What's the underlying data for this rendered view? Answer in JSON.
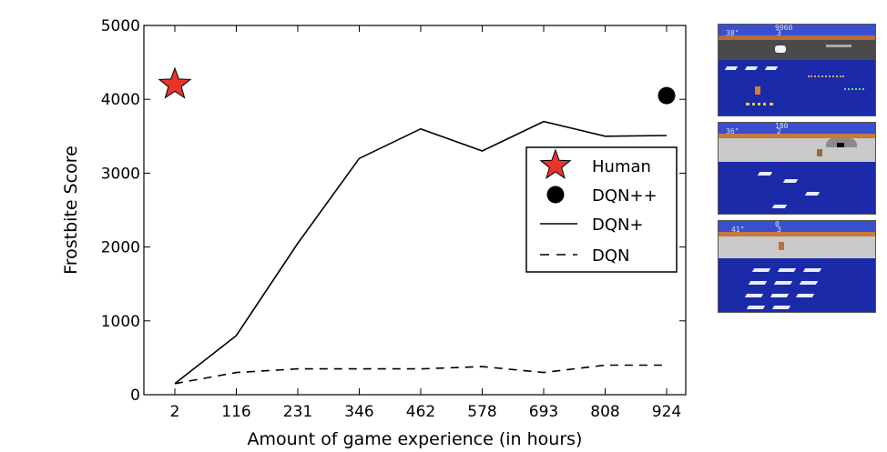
{
  "chart_data": {
    "type": "line",
    "xlabel": "Amount of game experience (in hours)",
    "ylabel": "Frostbite Score",
    "x": [
      2,
      116,
      231,
      346,
      462,
      578,
      693,
      808,
      924
    ],
    "x_tick_labels": [
      "2",
      "116",
      "231",
      "346",
      "462",
      "578",
      "693",
      "808",
      "924"
    ],
    "y_ticks": [
      0,
      1000,
      2000,
      3000,
      4000,
      5000
    ],
    "y_tick_labels": [
      "0",
      "1000",
      "2000",
      "3000",
      "4000",
      "5000"
    ],
    "ylim": [
      0,
      5000
    ],
    "series": [
      {
        "name": "DQN+",
        "style": "solid",
        "color": "#000000",
        "values": [
          150,
          800,
          2050,
          3200,
          3600,
          3300,
          3700,
          3500,
          3510
        ]
      },
      {
        "name": "DQN",
        "style": "dashed",
        "color": "#000000",
        "values": [
          150,
          300,
          350,
          350,
          350,
          380,
          300,
          400,
          400
        ]
      }
    ],
    "points": [
      {
        "name": "Human",
        "x": 2,
        "y": 4200,
        "marker": "star",
        "color": "#e8352b"
      },
      {
        "name": "DQN++",
        "x": 924,
        "y": 4050,
        "marker": "circle",
        "color": "#000000"
      }
    ],
    "legend": {
      "position": "center-right",
      "entries": [
        {
          "label": "Human",
          "marker": "star"
        },
        {
          "label": "DQN++",
          "marker": "circle"
        },
        {
          "label": "DQN+",
          "marker": "solid-line"
        },
        {
          "label": "DQN",
          "marker": "dashed-line"
        }
      ]
    },
    "grid": false
  },
  "thumbnails": [
    {
      "score": "9960",
      "timer": "38\"",
      "lives": "3"
    },
    {
      "score": "180",
      "timer": "36\"",
      "lives": "2"
    },
    {
      "score": "0",
      "timer": "41\"",
      "lives": "3"
    }
  ]
}
